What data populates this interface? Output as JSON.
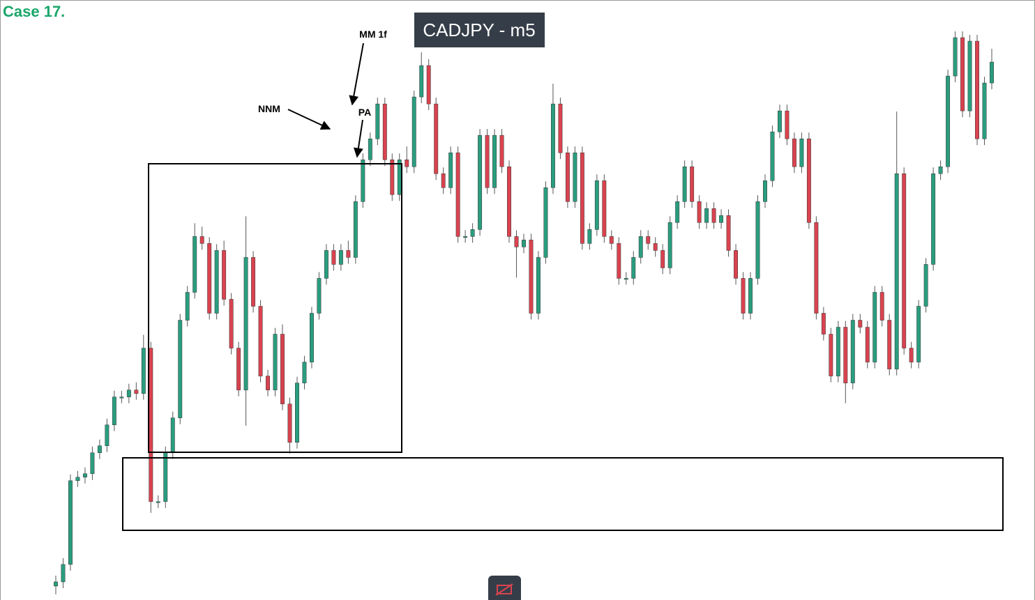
{
  "chart_data": {
    "type": "candlestick",
    "label": "Case 17.",
    "title": "CADJPY - m5",
    "annotations": [
      "MM 1f",
      "NNM",
      "PA"
    ],
    "up_color": "#2a9d7f",
    "down_color": "#d9434f",
    "ohlc": [
      [
        20,
        35,
        8,
        26
      ],
      [
        26,
        60,
        17,
        51
      ],
      [
        51,
        180,
        42,
        171
      ],
      [
        171,
        185,
        162,
        176
      ],
      [
        176,
        190,
        167,
        181
      ],
      [
        181,
        220,
        172,
        211
      ],
      [
        211,
        230,
        202,
        221
      ],
      [
        221,
        260,
        212,
        251
      ],
      [
        251,
        300,
        242,
        291
      ],
      [
        291,
        300,
        282,
        291
      ],
      [
        291,
        310,
        282,
        301
      ],
      [
        301,
        312,
        287,
        296
      ],
      [
        296,
        380,
        287,
        361
      ],
      [
        361,
        370,
        125,
        141
      ],
      [
        141,
        150,
        132,
        141
      ],
      [
        141,
        220,
        132,
        211
      ],
      [
        211,
        270,
        202,
        261
      ],
      [
        261,
        410,
        252,
        401
      ],
      [
        401,
        450,
        392,
        441
      ],
      [
        441,
        540,
        432,
        521
      ],
      [
        521,
        535,
        502,
        511
      ],
      [
        511,
        520,
        402,
        411
      ],
      [
        411,
        510,
        402,
        501
      ],
      [
        501,
        515,
        422,
        431
      ],
      [
        431,
        440,
        352,
        361
      ],
      [
        361,
        370,
        292,
        301
      ],
      [
        301,
        550,
        250,
        491
      ],
      [
        491,
        500,
        412,
        421
      ],
      [
        421,
        430,
        312,
        321
      ],
      [
        321,
        330,
        292,
        301
      ],
      [
        301,
        390,
        292,
        381
      ],
      [
        381,
        395,
        272,
        281
      ],
      [
        281,
        290,
        210,
        226
      ],
      [
        226,
        320,
        217,
        311
      ],
      [
        311,
        350,
        302,
        341
      ],
      [
        341,
        420,
        332,
        411
      ],
      [
        411,
        470,
        402,
        461
      ],
      [
        461,
        510,
        452,
        501
      ],
      [
        501,
        510,
        472,
        481
      ],
      [
        481,
        510,
        472,
        501
      ],
      [
        501,
        515,
        482,
        491
      ],
      [
        491,
        580,
        482,
        571
      ],
      [
        571,
        640,
        562,
        631
      ],
      [
        631,
        670,
        622,
        661
      ],
      [
        661,
        720,
        652,
        711
      ],
      [
        711,
        720,
        622,
        631
      ],
      [
        631,
        640,
        572,
        581
      ],
      [
        581,
        640,
        572,
        631
      ],
      [
        631,
        650,
        612,
        621
      ],
      [
        621,
        730,
        612,
        721
      ],
      [
        721,
        785,
        712,
        766
      ],
      [
        766,
        775,
        702,
        711
      ],
      [
        711,
        720,
        602,
        611
      ],
      [
        611,
        620,
        582,
        591
      ],
      [
        591,
        650,
        582,
        641
      ],
      [
        641,
        650,
        512,
        521
      ],
      [
        521,
        530,
        512,
        521
      ],
      [
        521,
        540,
        512,
        531
      ],
      [
        531,
        675,
        522,
        666
      ],
      [
        666,
        675,
        582,
        591
      ],
      [
        591,
        675,
        582,
        666
      ],
      [
        666,
        675,
        612,
        621
      ],
      [
        621,
        630,
        512,
        521
      ],
      [
        521,
        530,
        462,
        506
      ],
      [
        506,
        525,
        497,
        516
      ],
      [
        516,
        525,
        402,
        411
      ],
      [
        411,
        500,
        402,
        491
      ],
      [
        491,
        600,
        482,
        591
      ],
      [
        591,
        740,
        582,
        711
      ],
      [
        711,
        720,
        632,
        641
      ],
      [
        641,
        650,
        562,
        571
      ],
      [
        571,
        650,
        562,
        641
      ],
      [
        641,
        650,
        502,
        511
      ],
      [
        511,
        540,
        502,
        531
      ],
      [
        531,
        610,
        522,
        601
      ],
      [
        601,
        610,
        512,
        521
      ],
      [
        521,
        530,
        502,
        511
      ],
      [
        511,
        520,
        452,
        461
      ],
      [
        461,
        470,
        452,
        461
      ],
      [
        461,
        500,
        452,
        491
      ],
      [
        491,
        530,
        482,
        521
      ],
      [
        521,
        530,
        502,
        511
      ],
      [
        511,
        520,
        492,
        501
      ],
      [
        501,
        510,
        467,
        476
      ],
      [
        476,
        550,
        467,
        541
      ],
      [
        541,
        580,
        532,
        571
      ],
      [
        571,
        630,
        562,
        621
      ],
      [
        621,
        630,
        562,
        571
      ],
      [
        571,
        580,
        532,
        541
      ],
      [
        541,
        570,
        532,
        561
      ],
      [
        561,
        570,
        532,
        541
      ],
      [
        541,
        560,
        532,
        551
      ],
      [
        551,
        560,
        492,
        501
      ],
      [
        501,
        510,
        452,
        461
      ],
      [
        461,
        470,
        402,
        411
      ],
      [
        411,
        470,
        402,
        461
      ],
      [
        461,
        580,
        452,
        571
      ],
      [
        571,
        610,
        562,
        601
      ],
      [
        601,
        680,
        592,
        671
      ],
      [
        671,
        710,
        662,
        701
      ],
      [
        701,
        710,
        652,
        661
      ],
      [
        661,
        670,
        612,
        621
      ],
      [
        621,
        670,
        612,
        661
      ],
      [
        661,
        670,
        532,
        541
      ],
      [
        541,
        550,
        402,
        411
      ],
      [
        411,
        420,
        372,
        381
      ],
      [
        381,
        390,
        312,
        321
      ],
      [
        321,
        400,
        312,
        391
      ],
      [
        391,
        400,
        282,
        311
      ],
      [
        311,
        410,
        302,
        401
      ],
      [
        401,
        410,
        382,
        391
      ],
      [
        391,
        400,
        332,
        341
      ],
      [
        341,
        450,
        332,
        441
      ],
      [
        441,
        450,
        392,
        401
      ],
      [
        401,
        410,
        322,
        331
      ],
      [
        331,
        700,
        322,
        611
      ],
      [
        611,
        620,
        352,
        361
      ],
      [
        361,
        370,
        332,
        341
      ],
      [
        341,
        430,
        332,
        421
      ],
      [
        421,
        490,
        412,
        481
      ],
      [
        481,
        620,
        472,
        611
      ],
      [
        611,
        630,
        602,
        621
      ],
      [
        621,
        760,
        612,
        751
      ],
      [
        751,
        815,
        742,
        806
      ],
      [
        806,
        815,
        692,
        701
      ],
      [
        701,
        810,
        692,
        801
      ],
      [
        801,
        810,
        652,
        661
      ],
      [
        661,
        750,
        652,
        741
      ],
      [
        741,
        790,
        732,
        771
      ]
    ]
  }
}
